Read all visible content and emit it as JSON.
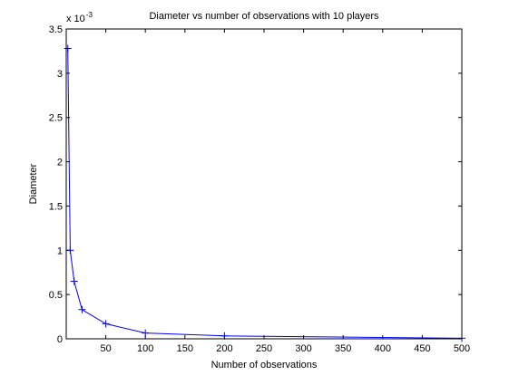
{
  "chart_data": {
    "type": "line",
    "title": "Diameter vs number of observations with 10 players",
    "xlabel": "Number of observations",
    "ylabel": "Diameter",
    "exponent_label": "x 10",
    "exponent_power": "-3",
    "xlim": [
      0,
      500
    ],
    "ylim": [
      0,
      3.5
    ],
    "y_scale_factor": 0.001,
    "xticks": [
      50,
      100,
      150,
      200,
      250,
      300,
      350,
      400,
      450,
      500
    ],
    "xtick_labels": [
      "50",
      "100",
      "150",
      "200",
      "250",
      "300",
      "350",
      "400",
      "450",
      "500"
    ],
    "yticks": [
      0,
      0.5,
      1,
      1.5,
      2,
      2.5,
      3,
      3.5
    ],
    "ytick_labels": [
      "0",
      "0.5",
      "1",
      "1.5",
      "2",
      "2.5",
      "3",
      "3.5"
    ],
    "grid": false,
    "legend": "none",
    "series": [
      {
        "x": [
          2,
          5,
          10,
          20,
          50,
          100,
          200,
          500
        ],
        "y": [
          3.28,
          1.0,
          0.65,
          0.33,
          0.17,
          0.065,
          0.033,
          0.0066
        ],
        "color": "#0000ff",
        "marker": "+"
      }
    ]
  }
}
